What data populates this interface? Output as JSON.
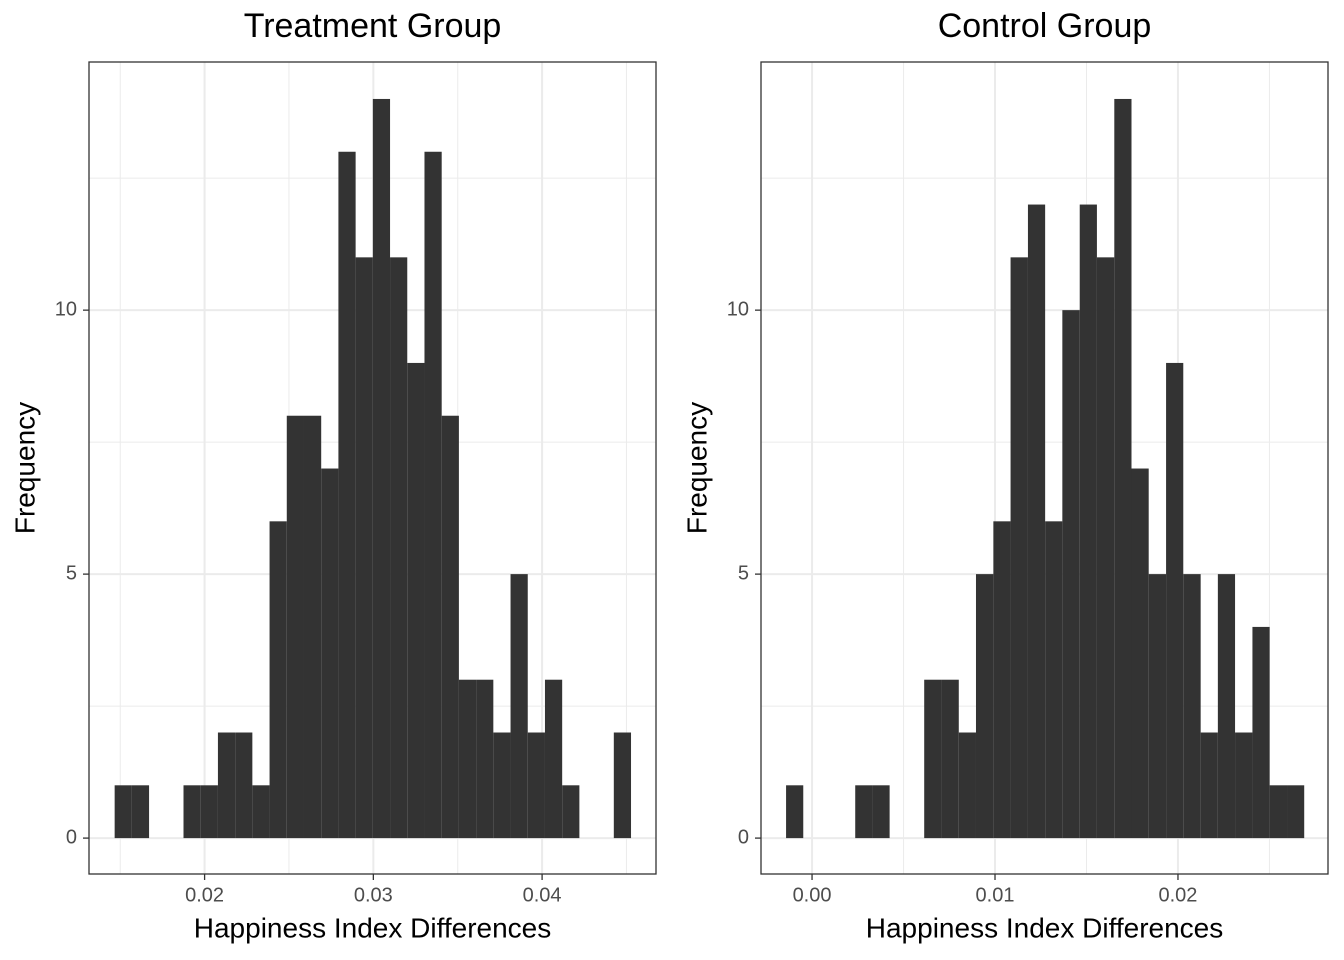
{
  "chart_data": [
    {
      "type": "histogram",
      "title": "Treatment Group",
      "x_label": "Happiness Index Differences",
      "y_label": "Frequency",
      "bins": [
        0.01467,
        0.01569,
        0.01671,
        0.01773,
        0.01875,
        0.01977,
        0.02079,
        0.02181,
        0.02283,
        0.02385,
        0.02487,
        0.02589,
        0.02691,
        0.02793,
        0.02895,
        0.02997,
        0.03099,
        0.03201,
        0.03303,
        0.03405,
        0.03507,
        0.03609,
        0.03711,
        0.03813,
        0.03915,
        0.04017,
        0.04119,
        0.04221,
        0.04323,
        0.04425,
        0.04527
      ],
      "values": [
        1,
        1,
        0,
        0,
        1,
        1,
        2,
        2,
        1,
        6,
        8,
        8,
        7,
        13,
        11,
        14,
        11,
        9,
        13,
        8,
        3,
        3,
        2,
        5,
        2,
        3,
        1,
        0,
        0,
        2
      ],
      "color": "#333333",
      "xlim": [
        0.01315,
        0.04675
      ],
      "ylim": [
        -0.68,
        14.7
      ],
      "xticks": [
        0.02,
        0.03,
        0.04
      ],
      "yticks": [
        0,
        5,
        10
      ],
      "grid": true
    },
    {
      "type": "histogram",
      "title": "Control Group",
      "x_label": "Happiness Index Differences",
      "y_label": "Frequency",
      "bins": [
        -0.00142,
        -0.00048,
        0.00047,
        0.00141,
        0.00236,
        0.0033,
        0.00424,
        0.00519,
        0.00613,
        0.00708,
        0.00802,
        0.00896,
        0.00991,
        0.01085,
        0.0118,
        0.01274,
        0.01368,
        0.01463,
        0.01557,
        0.01652,
        0.01746,
        0.0184,
        0.01935,
        0.02029,
        0.02124,
        0.02218,
        0.02312,
        0.02407,
        0.02501,
        0.02596,
        0.0269
      ],
      "values": [
        1,
        0,
        0,
        0,
        1,
        1,
        0,
        0,
        3,
        3,
        2,
        5,
        6,
        11,
        12,
        6,
        10,
        12,
        11,
        14,
        7,
        5,
        9,
        5,
        2,
        5,
        2,
        4,
        1,
        1
      ],
      "color": "#333333",
      "xlim": [
        -0.00279,
        0.0282
      ],
      "ylim": [
        -0.68,
        14.7
      ],
      "xticks": [
        {
          "value": 0,
          "label": "0.00"
        },
        0.01,
        0.02
      ],
      "yticks": [
        0,
        5,
        10
      ],
      "grid": true
    }
  ]
}
